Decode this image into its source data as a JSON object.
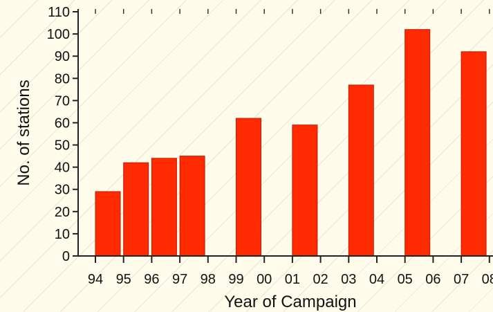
{
  "chart_data": {
    "type": "bar",
    "xlabel": "Year of Campaign",
    "ylabel": "No. of stations",
    "ylim": [
      0,
      110
    ],
    "yticks": [
      0,
      10,
      20,
      30,
      40,
      50,
      60,
      70,
      80,
      90,
      100,
      110
    ],
    "x_ticks": [
      "94",
      "95",
      "96",
      "97",
      "98",
      "99",
      "00",
      "01",
      "02",
      "03",
      "04",
      "05",
      "06",
      "07",
      "08"
    ],
    "categories": [
      "94",
      "95",
      "96",
      "97",
      "99",
      "01",
      "03",
      "05",
      "07"
    ],
    "values": [
      29,
      42,
      44,
      45,
      62,
      59,
      77,
      102,
      92
    ],
    "bar_color": "#ff2a00",
    "grid": false
  }
}
